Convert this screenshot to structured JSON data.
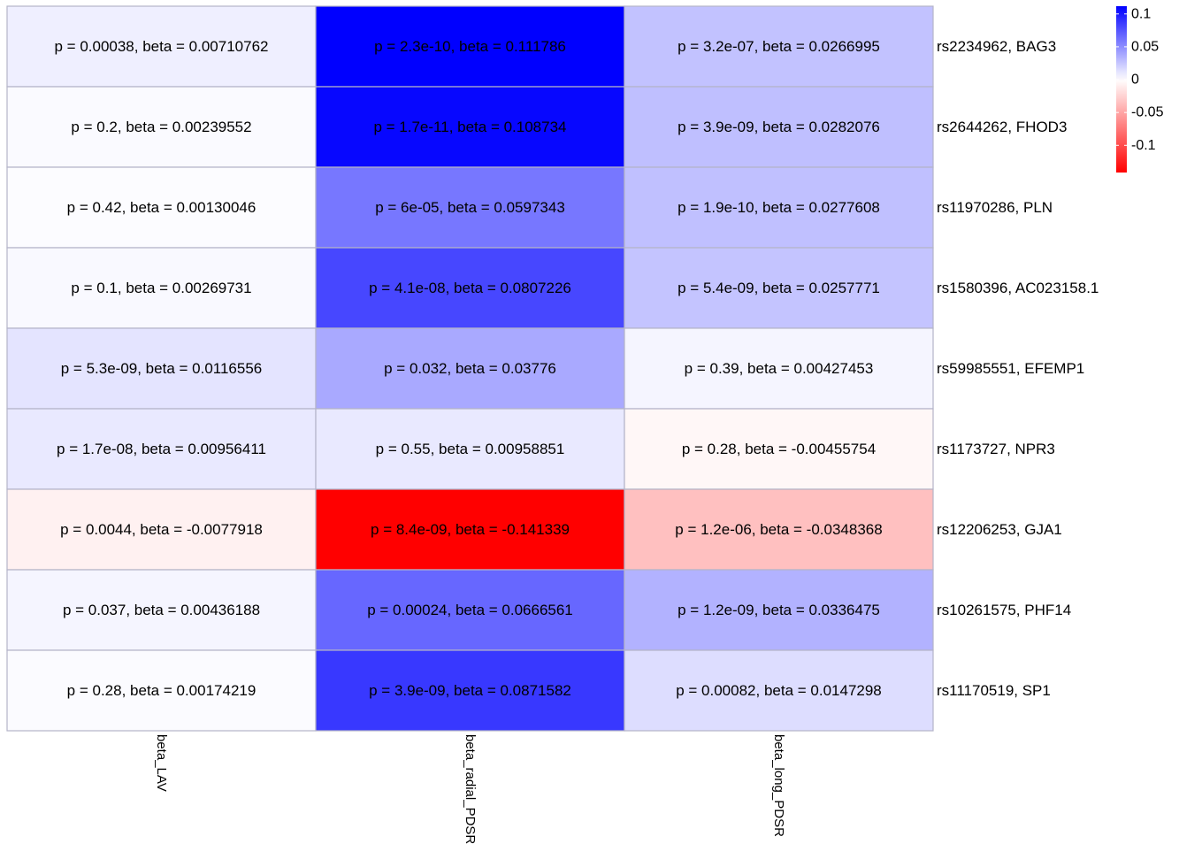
{
  "chart_data": {
    "type": "heatmap",
    "columns": [
      "beta_LAV",
      "beta_radial_PDSR",
      "beta_long_PDSR"
    ],
    "rows": [
      "rs2234962, BAG3",
      "rs2644262, FHOD3",
      "rs11970286, PLN",
      "rs1580396, AC023158.1",
      "rs59985551, EFEMP1",
      "rs1173727, NPR3",
      "rs12206253, GJA1",
      "rs10261575, PHF14",
      "rs11170519, SP1"
    ],
    "values": [
      [
        0.00710762,
        0.111786,
        0.0266995
      ],
      [
        0.00239552,
        0.108734,
        0.0282076
      ],
      [
        0.00130046,
        0.0597343,
        0.0277608
      ],
      [
        0.00269731,
        0.0807226,
        0.0257771
      ],
      [
        0.0116556,
        0.03776,
        0.00427453
      ],
      [
        0.00956411,
        0.00958851,
        -0.00455754
      ],
      [
        -0.0077918,
        -0.141339,
        -0.0348368
      ],
      [
        0.00436188,
        0.0666561,
        0.0336475
      ],
      [
        0.00174219,
        0.0871582,
        0.0147298
      ]
    ],
    "cell_labels": [
      [
        "p = 0.00038, beta = 0.00710762",
        "p = 2.3e-10, beta = 0.111786",
        "p = 3.2e-07, beta = 0.0266995"
      ],
      [
        "p = 0.2, beta = 0.00239552",
        "p = 1.7e-11, beta = 0.108734",
        "p = 3.9e-09, beta = 0.0282076"
      ],
      [
        "p = 0.42, beta = 0.00130046",
        "p = 6e-05, beta = 0.0597343",
        "p = 1.9e-10, beta = 0.0277608"
      ],
      [
        "p = 0.1, beta = 0.00269731",
        "p = 4.1e-08, beta = 0.0807226",
        "p = 5.4e-09, beta = 0.0257771"
      ],
      [
        "p = 5.3e-09, beta = 0.0116556",
        "p = 0.032, beta = 0.03776",
        "p = 0.39, beta = 0.00427453"
      ],
      [
        "p = 1.7e-08, beta = 0.00956411",
        "p = 0.55, beta = 0.00958851",
        "p = 0.28, beta = -0.00455754"
      ],
      [
        "p = 0.0044, beta = -0.0077918",
        "p = 8.4e-09, beta = -0.141339",
        "p = 1.2e-06, beta = -0.0348368"
      ],
      [
        "p = 0.037, beta = 0.00436188",
        "p = 0.00024, beta = 0.0666561",
        "p = 1.2e-09, beta = 0.0336475"
      ],
      [
        "p = 0.28, beta = 0.00174219",
        "p = 3.9e-09, beta = 0.0871582",
        "p = 0.00082, beta = 0.0147298"
      ]
    ],
    "color_scale": {
      "low_color": "#ff0000",
      "mid_color": "#ffffff",
      "high_color": "#0000ff",
      "min": -0.141339,
      "max": 0.111786,
      "midpoint": 0
    },
    "legend": {
      "ticks": [
        0.1,
        0.05,
        0,
        -0.05,
        -0.1
      ],
      "tick_labels": [
        "0.1",
        "0.05",
        "0",
        "-0.05",
        "-0.1"
      ],
      "placement": "top-right"
    },
    "grid_color": "#b4b4c8"
  }
}
